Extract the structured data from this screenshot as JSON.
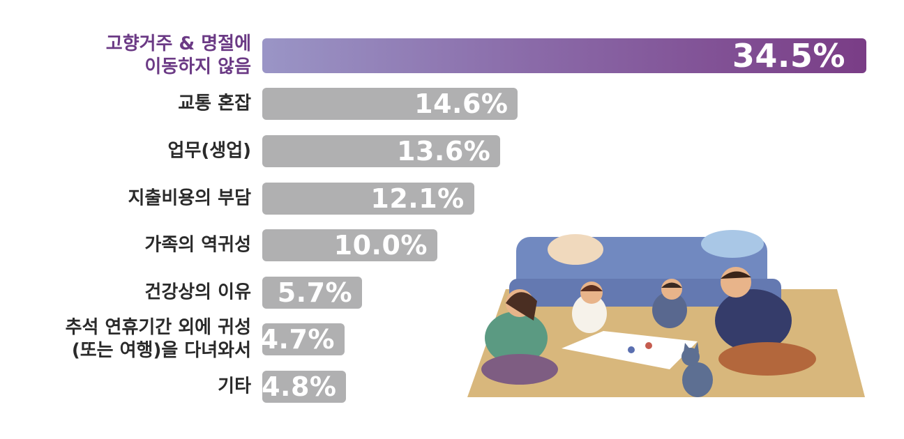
{
  "chart_data": {
    "type": "bar",
    "orientation": "horizontal",
    "categories": [
      "고향거주 & 명절에\n이동하지 않음",
      "교통 혼잡",
      "업무(생업)",
      "지출비용의 부담",
      "가족의 역귀성",
      "건강상의 이유",
      "추석 연휴기간 외에 귀성\n(또는 여행)을 다녀와서",
      "기타"
    ],
    "values": [
      34.5,
      14.6,
      13.6,
      12.1,
      10.0,
      5.7,
      4.7,
      4.8
    ],
    "value_labels": [
      "34.5%",
      "14.6%",
      "13.6%",
      "12.1%",
      "10.0%",
      "5.7%",
      "4.7%",
      "4.8%"
    ],
    "unit": "%",
    "highlight_index": 0,
    "xlim": [
      0,
      34.5
    ],
    "grid": false,
    "legend": "none"
  },
  "colors": {
    "highlight_start": "#9a95c6",
    "highlight_end": "#7a3d86",
    "highlight_label": "#6b3a85",
    "bar": "#b0b0b1",
    "label": "#2a2a2a",
    "value_text": "#ffffff"
  },
  "illustration": {
    "subject": "family playing a board game on a rug in front of a sofa"
  }
}
